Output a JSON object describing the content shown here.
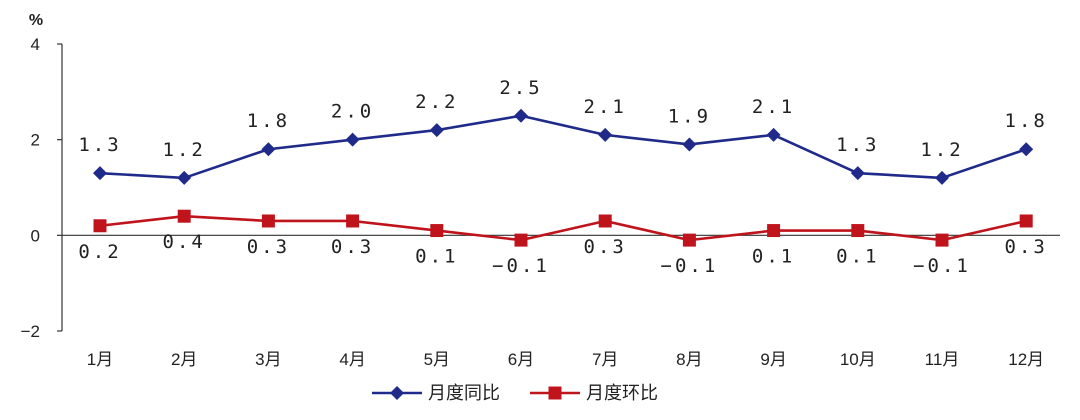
{
  "chart_data": {
    "type": "line",
    "unit_label": "%",
    "categories": [
      "1月",
      "2月",
      "3月",
      "4月",
      "5月",
      "6月",
      "7月",
      "8月",
      "9月",
      "10月",
      "11月",
      "12月"
    ],
    "ylim": [
      -2,
      4
    ],
    "yticks": [
      -2,
      0,
      2,
      4
    ],
    "ytick_labels": [
      "−2",
      "0",
      "2",
      "4"
    ],
    "legend_position": "bottom-center",
    "grid": false,
    "series": [
      {
        "name": "月度同比",
        "color": "#1f2a8a",
        "marker": "diamond",
        "values": [
          1.3,
          1.2,
          1.8,
          2.0,
          2.2,
          2.5,
          2.1,
          1.9,
          2.1,
          1.3,
          1.2,
          1.8
        ],
        "labels": [
          "1.3",
          "1.2",
          "1.8",
          "2.0",
          "2.2",
          "2.5",
          "2.1",
          "1.9",
          "2.1",
          "1.3",
          "1.2",
          "1.8"
        ],
        "label_position": "above"
      },
      {
        "name": "月度环比",
        "color": "#c0141c",
        "marker": "square",
        "values": [
          0.2,
          0.4,
          0.3,
          0.3,
          0.1,
          -0.1,
          0.3,
          -0.1,
          0.1,
          0.1,
          -0.1,
          0.3
        ],
        "labels": [
          "0.2",
          "0.4",
          "0.3",
          "0.3",
          "0.1",
          "−0.1",
          "0.3",
          "−0.1",
          "0.1",
          "0.1",
          "−0.1",
          "0.3"
        ],
        "label_position": "below"
      }
    ]
  }
}
